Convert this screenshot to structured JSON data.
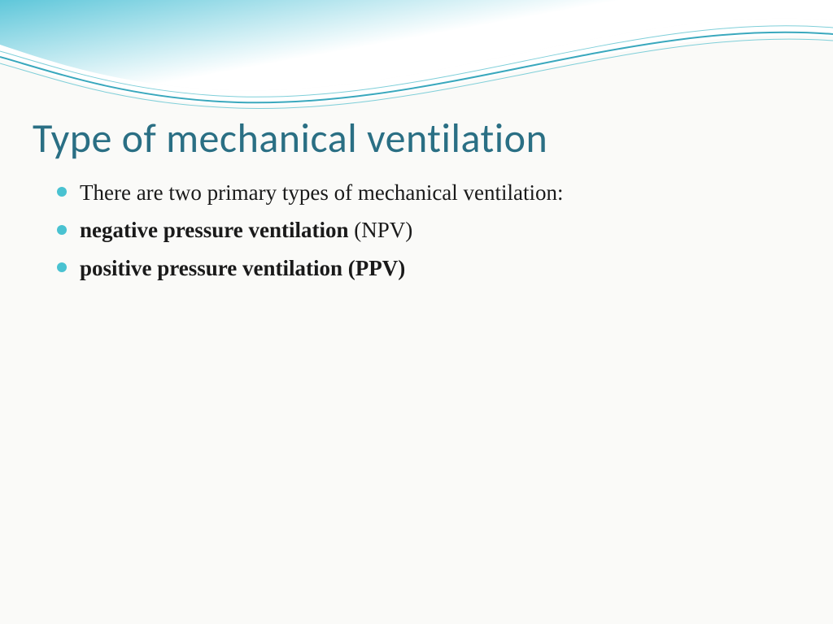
{
  "slide": {
    "title": "Type of mechanical ventilation",
    "title_color": "#2a6f84",
    "title_fontsize": 50,
    "bullet_color": "#49c2d1",
    "text_color": "#1a1a1a",
    "text_fontsize": 27,
    "background_color": "#fafaf8",
    "bullets": [
      {
        "plain_before": "There are two primary types of mechanical ventilation:",
        "bold": "",
        "plain_after": ""
      },
      {
        "plain_before": "",
        "bold": "negative pressure ventilation",
        "plain_after": " (NPV)"
      },
      {
        "plain_before": "",
        "bold": "positive pressure ventilation (PPV)",
        "plain_after": ""
      }
    ]
  },
  "wave": {
    "gradient_start": "#5fc7da",
    "gradient_end": "#ffffff",
    "stroke_color": "#3aa8bd",
    "stroke_thin": "#7fcfd9"
  }
}
